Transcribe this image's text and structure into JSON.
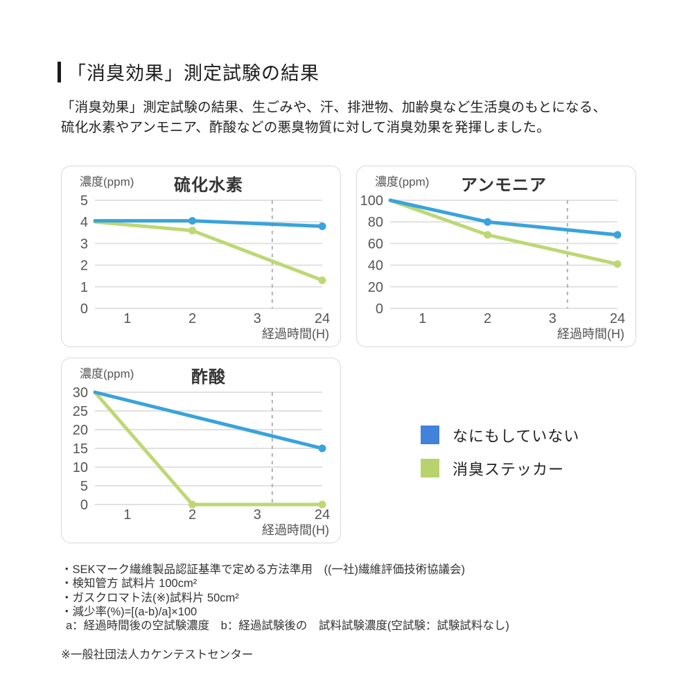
{
  "page": {
    "title": "「消臭効果」測定試験の結果",
    "intro_line1": "「消臭効果」測定試験の結果、生ごみや、汗、排泄物、加齢臭など生活臭のもとになる、",
    "intro_line2": "硫化水素やアンモニア、酢酸などの悪臭物質に対して消臭効果を発揮しました。"
  },
  "colors": {
    "line_blue": "#39A3DC",
    "line_green": "#BDD873",
    "legend_blue": "#4282DA",
    "legend_green": "#B8D36E",
    "grid": "#e1e1e1",
    "dashed_axis_break": "#b0b0b0"
  },
  "chart_data": [
    {
      "type": "line",
      "title": "硫化水素",
      "ylabel": "濃度(ppm)",
      "xlabel": "経過時間(H)",
      "x_tick_labels": [
        "1",
        "2",
        "3",
        "24"
      ],
      "y_ticks": [
        5,
        4,
        3,
        2,
        1,
        0
      ],
      "ylim": [
        0,
        5
      ],
      "grid": true,
      "axis_break_x_ratio": 0.78,
      "series": [
        {
          "name": "なにもしていない",
          "color": "#39A3DC",
          "points": [
            {
              "tick": 0,
              "y": 4.05,
              "dot": false
            },
            {
              "tick": 2,
              "y": 4.05,
              "dot": true
            },
            {
              "tick": 4,
              "y": 3.8,
              "dot": true
            }
          ]
        },
        {
          "name": "消臭ステッカー",
          "color": "#BDD873",
          "points": [
            {
              "tick": 0,
              "y": 4.0,
              "dot": false
            },
            {
              "tick": 2,
              "y": 3.6,
              "dot": true
            },
            {
              "tick": 4,
              "y": 1.3,
              "dot": true
            }
          ]
        }
      ]
    },
    {
      "type": "line",
      "title": "アンモニア",
      "ylabel": "濃度(ppm)",
      "xlabel": "経過時間(H)",
      "x_tick_labels": [
        "1",
        "2",
        "3",
        "24"
      ],
      "y_ticks": [
        100,
        80,
        60,
        40,
        20,
        0
      ],
      "ylim": [
        0,
        100
      ],
      "grid": true,
      "axis_break_x_ratio": 0.78,
      "series": [
        {
          "name": "なにもしていない",
          "color": "#39A3DC",
          "points": [
            {
              "tick": 0,
              "y": 100,
              "dot": false
            },
            {
              "tick": 2,
              "y": 80,
              "dot": true
            },
            {
              "tick": 4,
              "y": 68,
              "dot": true
            }
          ]
        },
        {
          "name": "消臭ステッカー",
          "color": "#BDD873",
          "points": [
            {
              "tick": 0,
              "y": 100,
              "dot": false
            },
            {
              "tick": 2,
              "y": 68,
              "dot": true
            },
            {
              "tick": 4,
              "y": 41,
              "dot": true
            }
          ]
        }
      ]
    },
    {
      "type": "line",
      "title": "酢酸",
      "ylabel": "濃度(ppm)",
      "xlabel": "経過時間(H)",
      "x_tick_labels": [
        "1",
        "2",
        "3",
        "24"
      ],
      "y_ticks": [
        30,
        25,
        20,
        15,
        10,
        5,
        0
      ],
      "ylim": [
        0,
        30
      ],
      "grid": true,
      "axis_break_x_ratio": 0.78,
      "series": [
        {
          "name": "なにもしていない",
          "color": "#39A3DC",
          "points": [
            {
              "tick": 0,
              "y": 30,
              "dot": false
            },
            {
              "tick": 4,
              "y": 15,
              "dot": true
            }
          ]
        },
        {
          "name": "消臭ステッカー",
          "color": "#BDD873",
          "points": [
            {
              "tick": 0,
              "y": 30,
              "dot": false
            },
            {
              "tick": 2,
              "y": 0,
              "dot": true
            },
            {
              "tick": 4,
              "y": 0,
              "dot": true
            }
          ]
        }
      ]
    }
  ],
  "legend": {
    "items": [
      {
        "label": "なにもしていない",
        "color": "#4282DA"
      },
      {
        "label": "消臭ステッカー",
        "color": "#B8D36E"
      }
    ]
  },
  "footnotes": {
    "lines": [
      "・SEKマーク繊維製品認証基準で定める方法準用　((一社)繊維評価技術協議会)",
      "・検知管方 試料片 100cm²",
      "・ガスクロマト法(※)試料片 50cm²",
      "・減少率(%)=[(a-b)/a]×100",
      "a：経過時間後の空試験濃度　b：経過試験後の　試料試験濃度(空試験：試験試料なし)"
    ],
    "asterisk_note": "※一般社団法人カケンテストセンター"
  }
}
